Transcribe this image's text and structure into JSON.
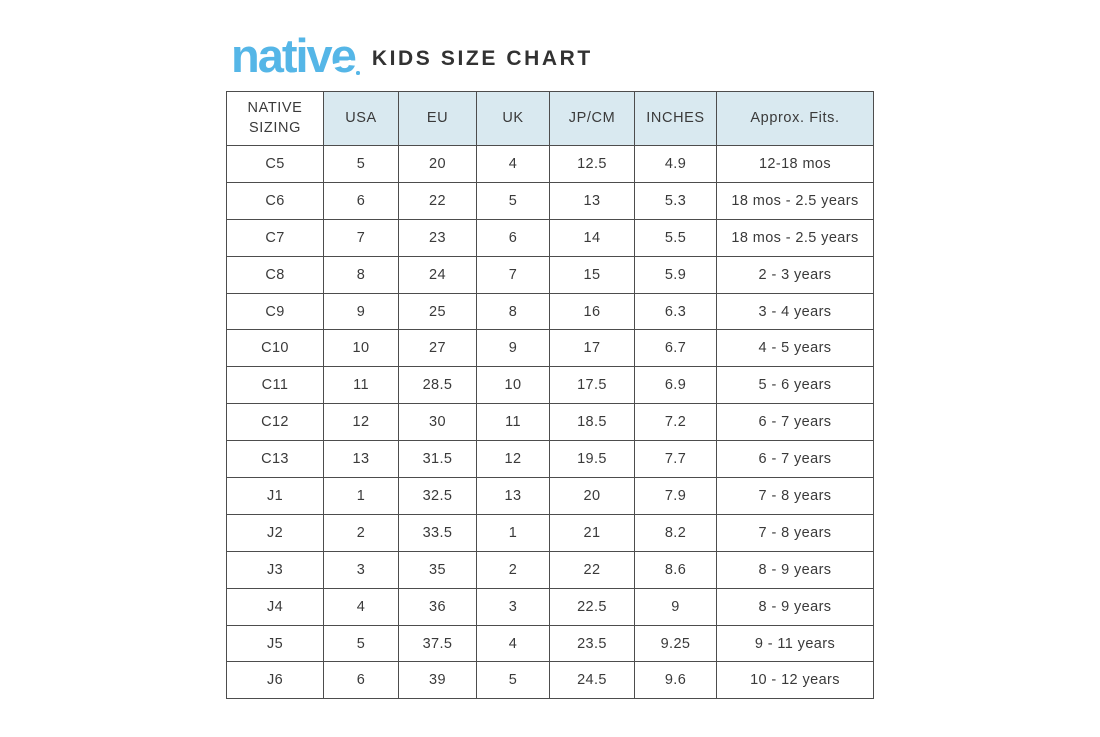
{
  "brand": {
    "name": "native",
    "logo_color": "#55b6e7"
  },
  "header": {
    "title": "KIDS SIZE CHART"
  },
  "colors": {
    "brand_blue": "#55b6e7",
    "header_row_bg": "#d9e9f0",
    "table_border": "#4d4d4d",
    "text": "#3a3a3a"
  },
  "chart_data": {
    "type": "table",
    "title": "native KIDS SIZE CHART",
    "columns": [
      "NATIVE SIZING",
      "USA",
      "EU",
      "UK",
      "JP/CM",
      "INCHES",
      "Approx. Fits."
    ],
    "rows": [
      [
        "C5",
        "5",
        "20",
        "4",
        "12.5",
        "4.9",
        "12-18 mos"
      ],
      [
        "C6",
        "6",
        "22",
        "5",
        "13",
        "5.3",
        "18 mos - 2.5 years"
      ],
      [
        "C7",
        "7",
        "23",
        "6",
        "14",
        "5.5",
        "18 mos - 2.5 years"
      ],
      [
        "C8",
        "8",
        "24",
        "7",
        "15",
        "5.9",
        "2 - 3 years"
      ],
      [
        "C9",
        "9",
        "25",
        "8",
        "16",
        "6.3",
        "3 - 4 years"
      ],
      [
        "C10",
        "10",
        "27",
        "9",
        "17",
        "6.7",
        "4 - 5 years"
      ],
      [
        "C11",
        "11",
        "28.5",
        "10",
        "17.5",
        "6.9",
        "5 - 6 years"
      ],
      [
        "C12",
        "12",
        "30",
        "11",
        "18.5",
        "7.2",
        "6 - 7 years"
      ],
      [
        "C13",
        "13",
        "31.5",
        "12",
        "19.5",
        "7.7",
        "6 - 7 years"
      ],
      [
        "J1",
        "1",
        "32.5",
        "13",
        "20",
        "7.9",
        "7 - 8 years"
      ],
      [
        "J2",
        "2",
        "33.5",
        "1",
        "21",
        "8.2",
        "7 - 8 years"
      ],
      [
        "J3",
        "3",
        "35",
        "2",
        "22",
        "8.6",
        "8 - 9 years"
      ],
      [
        "J4",
        "4",
        "36",
        "3",
        "22.5",
        "9",
        "8 - 9 years"
      ],
      [
        "J5",
        "5",
        "37.5",
        "4",
        "23.5",
        "9.25",
        "9 - 11 years"
      ],
      [
        "J6",
        "6",
        "39",
        "5",
        "24.5",
        "9.6",
        "10 - 12 years"
      ]
    ]
  }
}
